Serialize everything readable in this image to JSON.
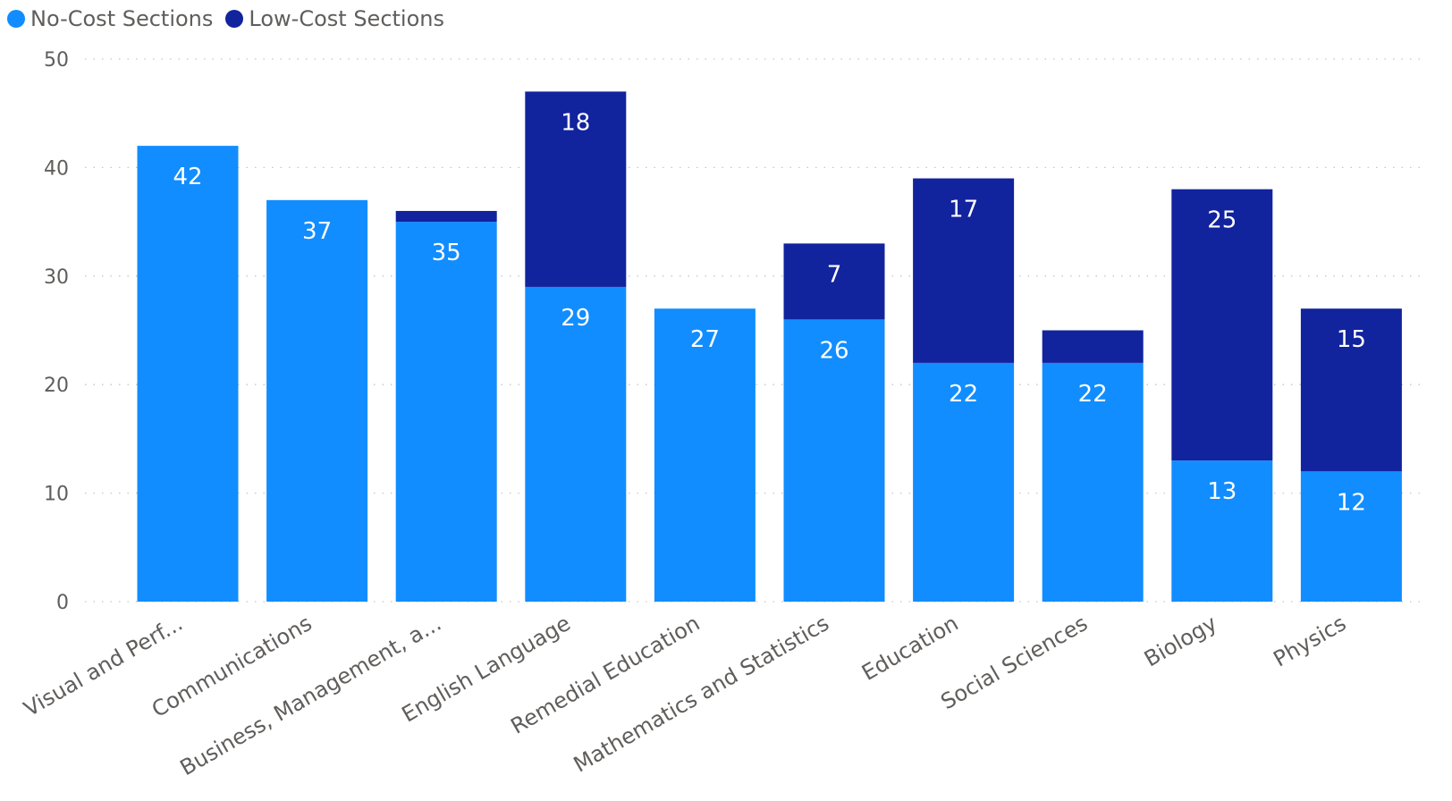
{
  "chart_data": {
    "type": "bar",
    "stacked": true,
    "categories": [
      "Visual and Perf...",
      "Communications",
      "Business, Management, a...",
      "English Language",
      "Remedial Education",
      "Mathematics and Statistics",
      "Education",
      "Social Sciences",
      "Biology",
      "Physics"
    ],
    "series": [
      {
        "name": "No-Cost Sections",
        "color": "#118dff",
        "values": [
          42,
          37,
          35,
          29,
          27,
          26,
          22,
          22,
          13,
          12
        ]
      },
      {
        "name": "Low-Cost Sections",
        "color": "#12239e",
        "values": [
          0,
          0,
          1,
          18,
          0,
          7,
          17,
          3,
          25,
          15
        ]
      }
    ],
    "data_labels": {
      "No-Cost Sections": [
        "42",
        "37",
        "35",
        "29",
        "27",
        "26",
        "22",
        "22",
        "13",
        "12"
      ],
      "Low-Cost Sections": [
        "",
        "",
        "",
        "18",
        "",
        "7",
        "17",
        "",
        "25",
        "15"
      ]
    },
    "y_ticks": [
      0,
      10,
      20,
      30,
      40,
      50
    ],
    "ylim": [
      0,
      50
    ],
    "title": "",
    "xlabel": "",
    "ylabel": "",
    "legend": "top-left",
    "grid": true
  }
}
